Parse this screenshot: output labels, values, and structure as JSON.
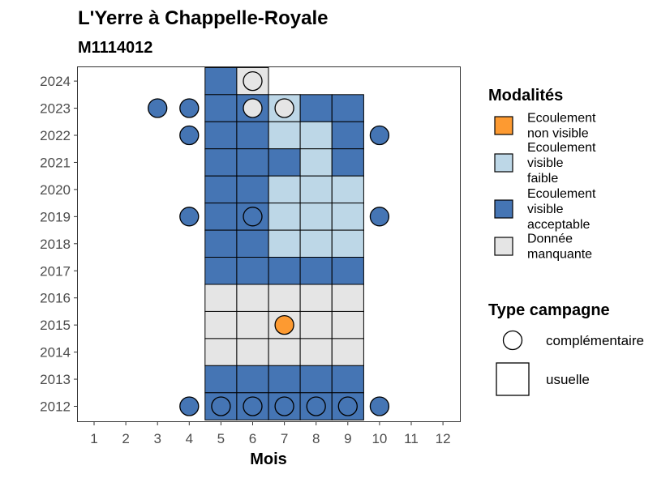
{
  "chart_data": {
    "type": "heatmap",
    "title": "L'Yerre à Chappelle-Royale",
    "subtitle": "M1114012",
    "xlabel": "Mois",
    "ylabel": "",
    "x_ticks": [
      1,
      2,
      3,
      4,
      5,
      6,
      7,
      8,
      9,
      10,
      11,
      12
    ],
    "y_ticks": [
      2012,
      2013,
      2014,
      2015,
      2016,
      2017,
      2018,
      2019,
      2020,
      2021,
      2022,
      2023,
      2024
    ],
    "grid": false,
    "legend_position": "right",
    "modalities": [
      {
        "key": "nv",
        "lines": [
          "Ecoulement",
          "non visible"
        ],
        "color": "#fd9a31"
      },
      {
        "key": "vf",
        "lines": [
          "Ecoulement",
          "visible",
          "faible"
        ],
        "color": "#bdd7e7"
      },
      {
        "key": "va",
        "lines": [
          "Ecoulement",
          "visible",
          "acceptable"
        ],
        "color": "#4575b4"
      },
      {
        "key": "dm",
        "lines": [
          "Donnée",
          "manquante"
        ],
        "color": "#e5e5e5"
      }
    ],
    "modalities_title": "Modalités",
    "campaign_title": "Type campagne",
    "campaign_types": [
      {
        "key": "complementaire",
        "label": "complémentaire",
        "shape": "circle"
      },
      {
        "key": "usuelle",
        "label": "usuelle",
        "shape": "square"
      }
    ],
    "usual": [
      {
        "year": 2024,
        "months": {
          "5": "va",
          "6": "dm"
        }
      },
      {
        "year": 2023,
        "months": {
          "5": "va",
          "6": "va",
          "7": "vf",
          "8": "va",
          "9": "va"
        }
      },
      {
        "year": 2022,
        "months": {
          "5": "va",
          "6": "va",
          "7": "vf",
          "8": "vf",
          "9": "va"
        }
      },
      {
        "year": 2021,
        "months": {
          "5": "va",
          "6": "va",
          "7": "va",
          "8": "vf",
          "9": "va"
        }
      },
      {
        "year": 2020,
        "months": {
          "5": "va",
          "6": "va",
          "7": "vf",
          "8": "vf",
          "9": "vf"
        }
      },
      {
        "year": 2019,
        "months": {
          "5": "va",
          "6": "va",
          "7": "vf",
          "8": "vf",
          "9": "vf"
        }
      },
      {
        "year": 2018,
        "months": {
          "5": "va",
          "6": "va",
          "7": "vf",
          "8": "vf",
          "9": "vf"
        }
      },
      {
        "year": 2017,
        "months": {
          "5": "va",
          "6": "va",
          "7": "va",
          "8": "va",
          "9": "va"
        }
      },
      {
        "year": 2016,
        "months": {
          "5": "dm",
          "6": "dm",
          "7": "dm",
          "8": "dm",
          "9": "dm"
        }
      },
      {
        "year": 2015,
        "months": {
          "5": "dm",
          "6": "dm",
          "7": "dm",
          "8": "dm",
          "9": "dm"
        }
      },
      {
        "year": 2014,
        "months": {
          "5": "dm",
          "6": "dm",
          "7": "dm",
          "8": "dm",
          "9": "dm"
        }
      },
      {
        "year": 2013,
        "months": {
          "5": "va",
          "6": "va",
          "7": "va",
          "8": "va",
          "9": "va"
        }
      },
      {
        "year": 2012,
        "months": {
          "5": "va",
          "6": "va",
          "7": "va",
          "8": "va",
          "9": "va"
        }
      }
    ],
    "complementary": [
      {
        "year": 2024,
        "month": 6,
        "m": "dm"
      },
      {
        "year": 2023,
        "month": 3,
        "m": "va"
      },
      {
        "year": 2023,
        "month": 4,
        "m": "va"
      },
      {
        "year": 2023,
        "month": 6,
        "m": "dm"
      },
      {
        "year": 2023,
        "month": 7,
        "m": "dm"
      },
      {
        "year": 2022,
        "month": 4,
        "m": "va"
      },
      {
        "year": 2022,
        "month": 10,
        "m": "va"
      },
      {
        "year": 2019,
        "month": 4,
        "m": "va"
      },
      {
        "year": 2019,
        "month": 6,
        "m": "va"
      },
      {
        "year": 2019,
        "month": 10,
        "m": "va"
      },
      {
        "year": 2015,
        "month": 7,
        "m": "nv"
      },
      {
        "year": 2012,
        "month": 4,
        "m": "va"
      },
      {
        "year": 2012,
        "month": 5,
        "m": "va"
      },
      {
        "year": 2012,
        "month": 6,
        "m": "va"
      },
      {
        "year": 2012,
        "month": 7,
        "m": "va"
      },
      {
        "year": 2012,
        "month": 8,
        "m": "va"
      },
      {
        "year": 2012,
        "month": 9,
        "m": "va"
      },
      {
        "year": 2012,
        "month": 10,
        "m": "va"
      }
    ]
  }
}
